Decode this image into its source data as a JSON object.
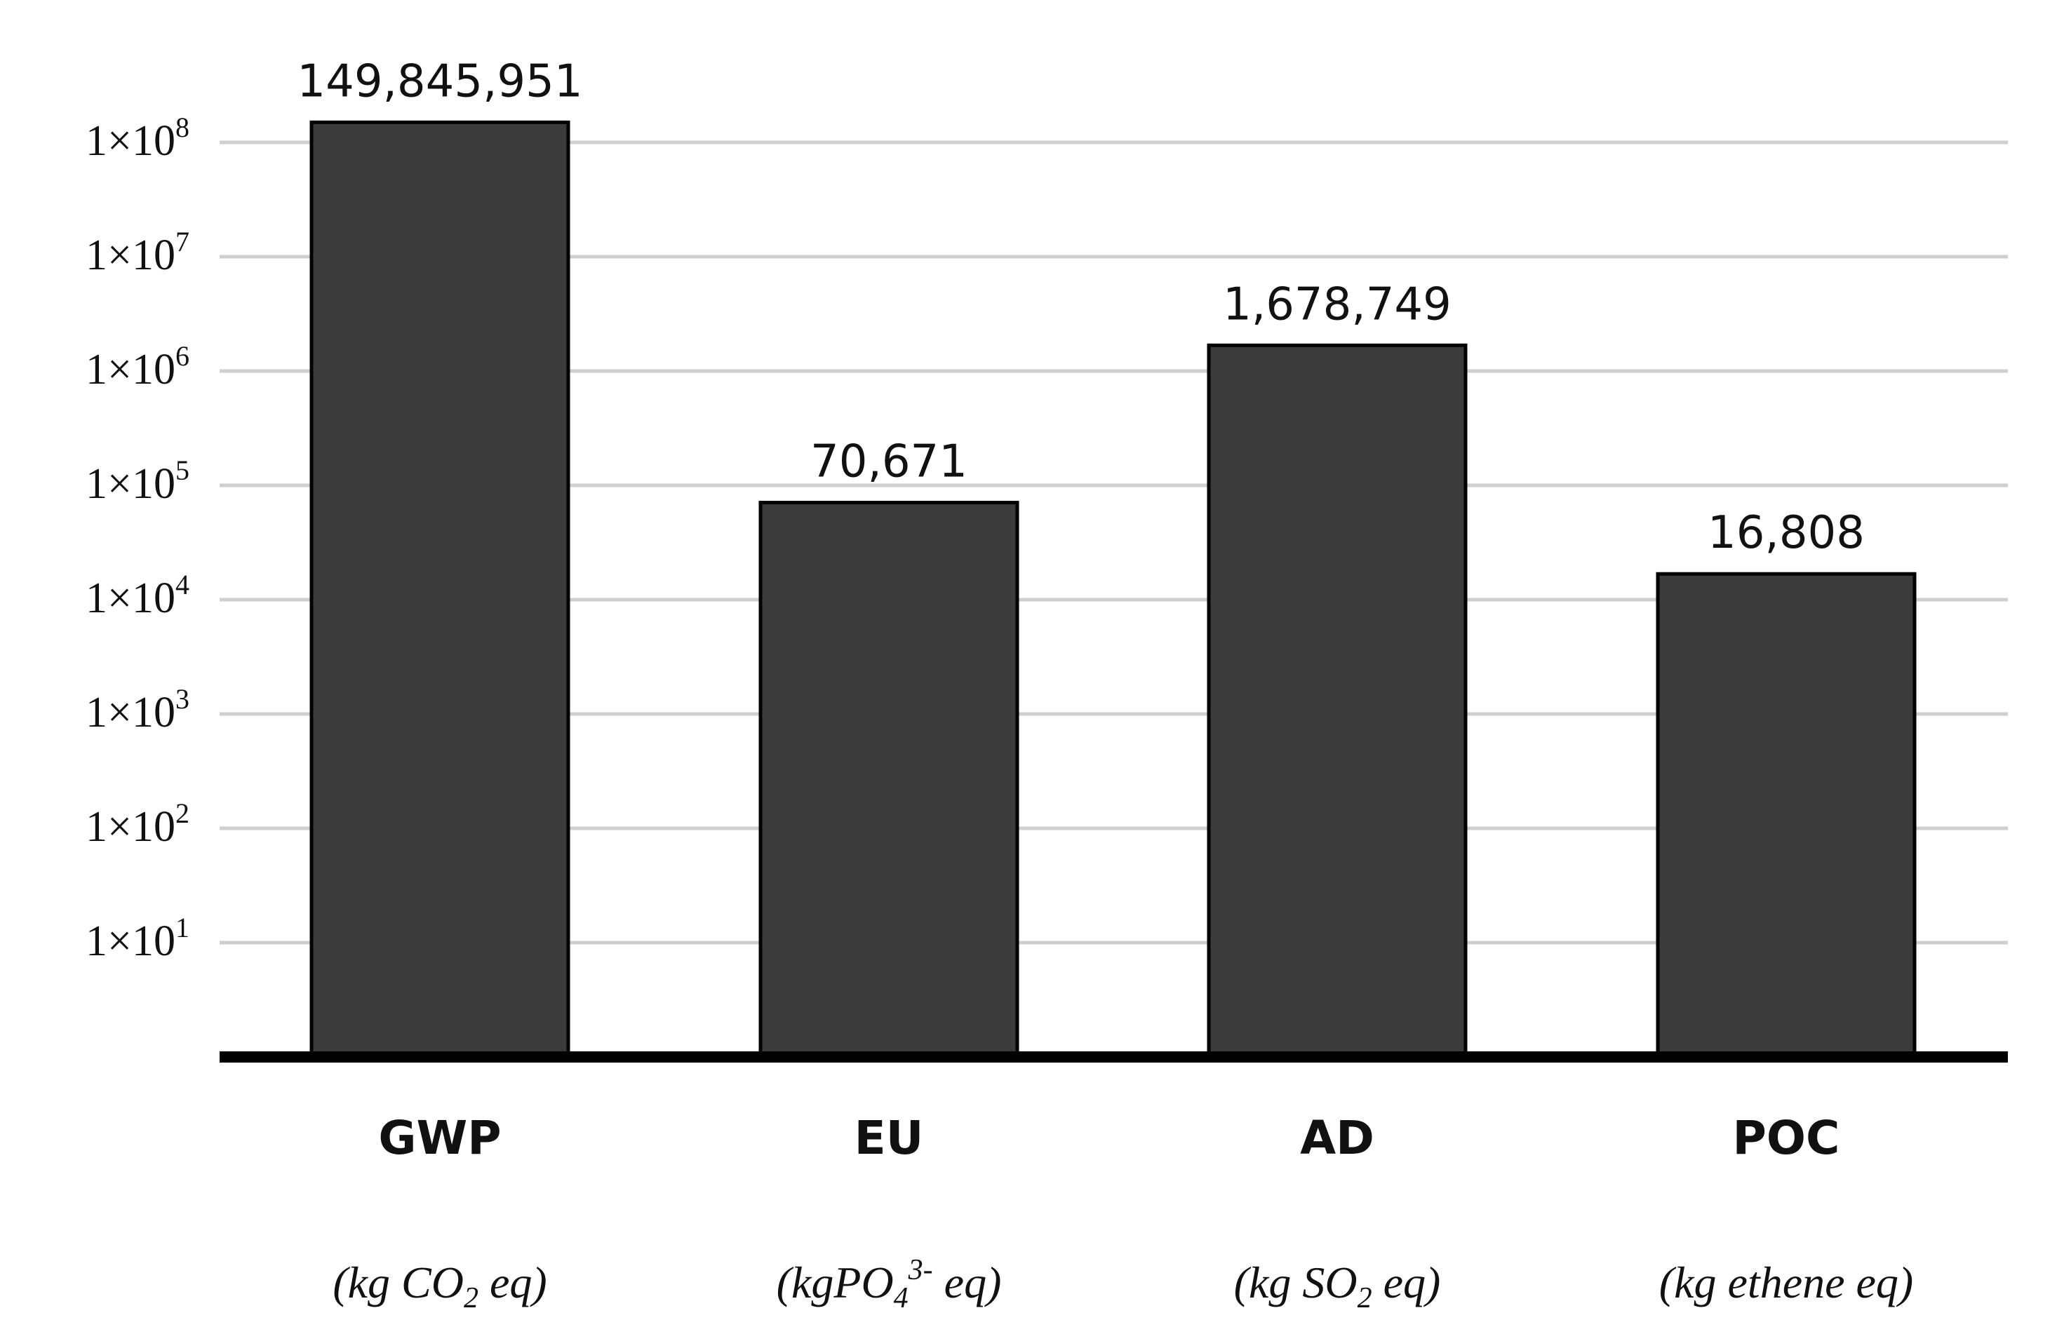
{
  "chart_data": {
    "type": "bar",
    "y_scale": "log",
    "categories": [
      "GWP",
      "EU",
      "AD",
      "POC"
    ],
    "units": [
      {
        "before": "(kg CO",
        "sub": "2",
        "sup": "",
        "after": " eq)"
      },
      {
        "before": "(kgPO",
        "sub": "4",
        "sup": "3-",
        "after": " eq)"
      },
      {
        "before": "(kg SO",
        "sub": "2",
        "sup": "",
        "after": " eq)"
      },
      {
        "before": "(kg ethene eq)",
        "sub": "",
        "sup": "",
        "after": ""
      }
    ],
    "values": [
      149845951,
      70671,
      1678749,
      16808
    ],
    "data_labels": [
      "149,845,951",
      "70,671",
      "1,678,749",
      "16,808"
    ],
    "y_ticks": [
      {
        "value": 10,
        "base": "1×10",
        "exp": "1"
      },
      {
        "value": 100,
        "base": "1×10",
        "exp": "2"
      },
      {
        "value": 1000,
        "base": "1×10",
        "exp": "3"
      },
      {
        "value": 10000,
        "base": "1×10",
        "exp": "4"
      },
      {
        "value": 100000,
        "base": "1×10",
        "exp": "5"
      },
      {
        "value": 1000000,
        "base": "1×10",
        "exp": "6"
      },
      {
        "value": 10000000,
        "base": "1×10",
        "exp": "7"
      },
      {
        "value": 100000000,
        "base": "1×10",
        "exp": "8"
      }
    ],
    "ylim": [
      1,
      150000000
    ],
    "grid": true,
    "title": "",
    "xlabel": "",
    "ylabel": "",
    "colors": {
      "bar": "#3b3b3b",
      "bar_edge": "#000000",
      "grid": "#cfcfcf",
      "axis": "#000000"
    }
  }
}
